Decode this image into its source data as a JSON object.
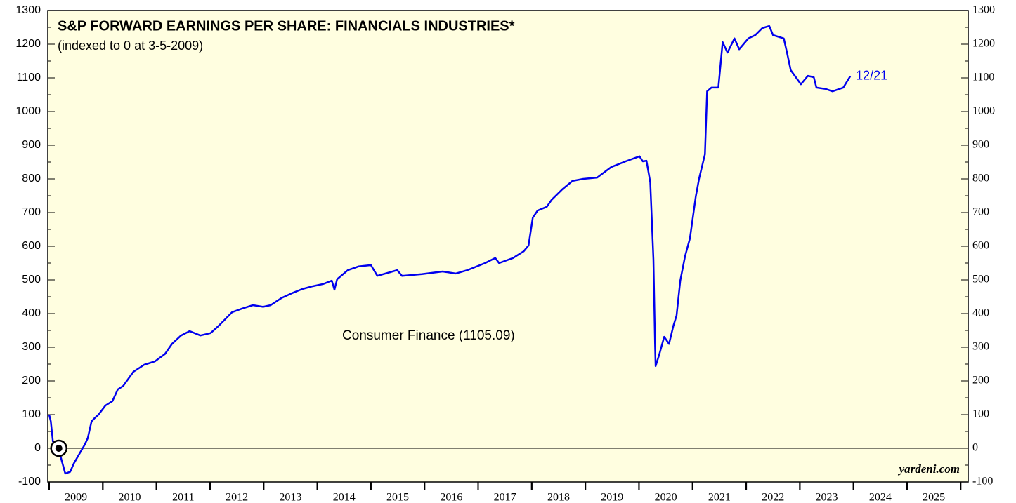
{
  "chart_data": {
    "type": "line",
    "title": "S&P FORWARD EARNINGS PER SHARE: FINANCIALS INDUSTRIES*",
    "subtitle": "(indexed to 0 at 3-5-2009)",
    "annotations": [
      "Consumer Finance (1105.09)",
      "12/21"
    ],
    "source": "yardeni.com",
    "color": "#0000ee",
    "marker": {
      "x": 2009.18,
      "y": 0
    },
    "xlim": [
      2009,
      2026.14
    ],
    "ylim": [
      -100,
      1300
    ],
    "yticks": [
      -100,
      0,
      100,
      200,
      300,
      400,
      500,
      600,
      700,
      800,
      900,
      1000,
      1100,
      1200,
      1300
    ],
    "xticks": [
      {
        "value": 2009.5,
        "label": "2009"
      },
      {
        "value": 2010.5,
        "label": "2010"
      },
      {
        "value": 2011.5,
        "label": "2011"
      },
      {
        "value": 2012.5,
        "label": "2012"
      },
      {
        "value": 2013.5,
        "label": "2013"
      },
      {
        "value": 2014.5,
        "label": "2014"
      },
      {
        "value": 2015.5,
        "label": "2015"
      },
      {
        "value": 2016.5,
        "label": "2016"
      },
      {
        "value": 2017.5,
        "label": "2017"
      },
      {
        "value": 2018.5,
        "label": "2018"
      },
      {
        "value": 2019.5,
        "label": "2019"
      },
      {
        "value": 2020.5,
        "label": "2020"
      },
      {
        "value": 2021.5,
        "label": "2021"
      },
      {
        "value": 2022.5,
        "label": "2022"
      },
      {
        "value": 2023.5,
        "label": "2023"
      },
      {
        "value": 2024.5,
        "label": "2024"
      },
      {
        "value": 2025.5,
        "label": "2025"
      }
    ],
    "x": [
      2009.0,
      2009.03,
      2009.07,
      2009.17,
      2009.3,
      2009.39,
      2009.46,
      2009.55,
      2009.66,
      2009.72,
      2009.79,
      2009.85,
      2009.92,
      2010.05,
      2010.18,
      2010.28,
      2010.38,
      2010.57,
      2010.77,
      2010.97,
      2011.16,
      2011.29,
      2011.46,
      2011.62,
      2011.82,
      2012.01,
      2012.15,
      2012.28,
      2012.41,
      2012.6,
      2012.8,
      2012.99,
      2013.13,
      2013.33,
      2013.52,
      2013.72,
      2013.91,
      2014.11,
      2014.27,
      2014.32,
      2014.37,
      2014.57,
      2014.77,
      2015.0,
      2015.12,
      2015.36,
      2015.49,
      2015.58,
      2015.95,
      2016.34,
      2016.58,
      2016.8,
      2017.13,
      2017.32,
      2017.39,
      2017.65,
      2017.85,
      2017.94,
      2018.02,
      2018.11,
      2018.28,
      2018.37,
      2018.57,
      2018.76,
      2018.96,
      2019.22,
      2019.48,
      2019.75,
      2020.01,
      2020.07,
      2020.14,
      2020.21,
      2020.27,
      2020.3,
      2020.31,
      2020.38,
      2020.47,
      2020.56,
      2020.64,
      2020.7,
      2020.77,
      2020.86,
      2020.95,
      2021.06,
      2021.12,
      2021.23,
      2021.27,
      2021.35,
      2021.48,
      2021.56,
      2021.65,
      2021.78,
      2021.87,
      2022.04,
      2022.17,
      2022.3,
      2022.43,
      2022.5,
      2022.7,
      2022.76,
      2022.83,
      2023.02,
      2023.15,
      2023.26,
      2023.31,
      2023.48,
      2023.61,
      2023.81,
      2023.94
    ],
    "values": [
      100,
      80,
      20,
      0,
      -75,
      -70,
      -45,
      -20,
      10,
      30,
      80,
      90,
      100,
      127,
      140,
      175,
      185,
      227,
      248,
      258,
      280,
      310,
      335,
      348,
      335,
      342,
      362,
      383,
      404,
      415,
      425,
      420,
      425,
      446,
      460,
      473,
      481,
      488,
      498,
      471,
      502,
      529,
      540,
      544,
      512,
      523,
      529,
      512,
      517,
      525,
      519,
      529,
      550,
      565,
      550,
      565,
      585,
      602,
      685,
      706,
      717,
      738,
      769,
      794,
      800,
      804,
      835,
      852,
      867,
      852,
      854,
      790,
      560,
      310,
      244,
      279,
      331,
      310,
      363,
      394,
      498,
      571,
      623,
      748,
      800,
      873,
      1060,
      1071,
      1071,
      1206,
      1175,
      1217,
      1185,
      1217,
      1227,
      1248,
      1254,
      1227,
      1217,
      1175,
      1123,
      1081,
      1106,
      1102,
      1071,
      1067,
      1060,
      1071,
      1105.09
    ]
  }
}
